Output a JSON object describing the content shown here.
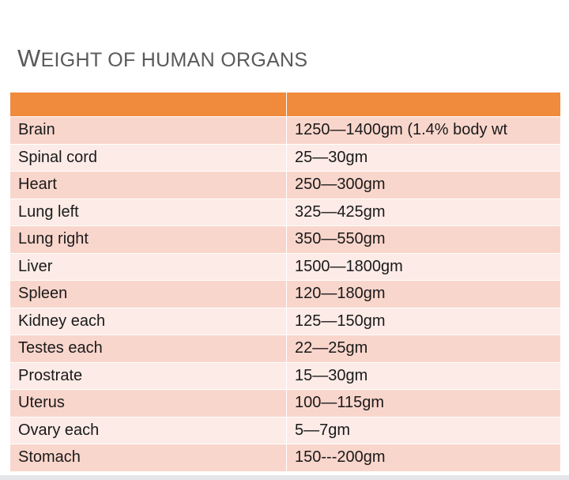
{
  "header": {
    "title": "WEIGHT OF HUMAN ORGANS"
  },
  "table": {
    "rows": [
      [
        "Brain",
        "1250—1400gm (1.4% body wt"
      ],
      [
        "Spinal cord",
        "25—30gm"
      ],
      [
        "Heart",
        "250—300gm"
      ],
      [
        "Lung left",
        "325—425gm"
      ],
      [
        "Lung right",
        "350—550gm"
      ],
      [
        "Liver",
        "1500—1800gm"
      ],
      [
        "Spleen",
        "120—180gm"
      ],
      [
        "Kidney each",
        "125—150gm"
      ],
      [
        "Testes each",
        "22—25gm"
      ],
      [
        "Prostrate",
        "15—30gm"
      ],
      [
        "Uterus",
        "100—115gm"
      ],
      [
        "Ovary each",
        "5—7gm"
      ],
      [
        "Stomach",
        "150---200gm"
      ]
    ]
  }
}
